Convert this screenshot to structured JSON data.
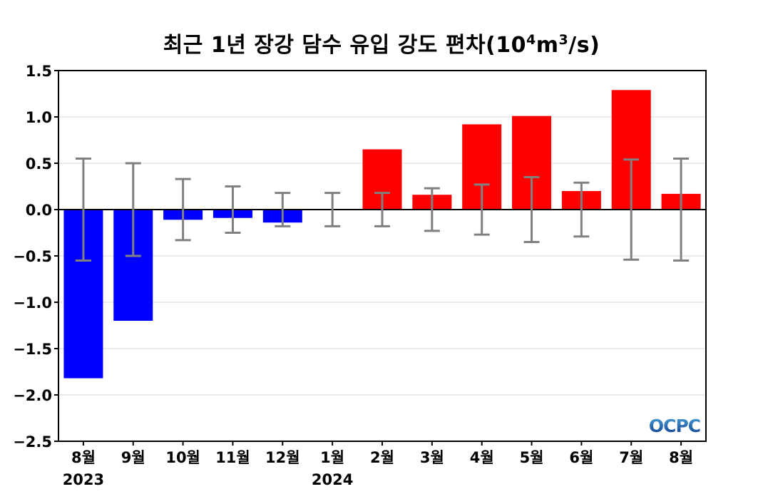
{
  "chart_data": {
    "type": "bar",
    "title": {
      "prefix": "최근 1년 장강 담수 유입 강도 편차(10",
      "sup1": "4",
      "mid": "m",
      "sup2": "3",
      "suffix": "/s)"
    },
    "categories": [
      "8월",
      "9월",
      "10월",
      "11월",
      "12월",
      "1월",
      "2월",
      "3월",
      "4월",
      "5월",
      "6월",
      "7월",
      "8월"
    ],
    "year_labels": [
      {
        "index": 0,
        "label": "2023"
      },
      {
        "index": 5,
        "label": "2024"
      }
    ],
    "values": [
      -1.82,
      -1.2,
      -0.11,
      -0.09,
      -0.14,
      0.0,
      0.65,
      0.16,
      0.92,
      1.01,
      0.2,
      1.29,
      0.17
    ],
    "error_bars": [
      0.55,
      0.5,
      0.33,
      0.25,
      0.18,
      0.18,
      0.18,
      0.23,
      0.27,
      0.35,
      0.29,
      0.54,
      0.55
    ],
    "ylim": [
      -2.5,
      1.5
    ],
    "yticks": [
      1.5,
      1.0,
      0.5,
      0.0,
      -0.5,
      -1.0,
      -1.5,
      -2.0,
      -2.5
    ],
    "ytick_labels": [
      "1.5",
      "1.0",
      "0.5",
      "0.0",
      "−0.5",
      "−1.0",
      "−1.5",
      "−2.0",
      "−2.5"
    ],
    "grid": true,
    "colors": {
      "positive": "#ff0000",
      "negative": "#0000ff",
      "error_bar": "#808080",
      "zero_line": "#000000",
      "grid": "#d9d9d9"
    },
    "logo": "OCPC"
  }
}
